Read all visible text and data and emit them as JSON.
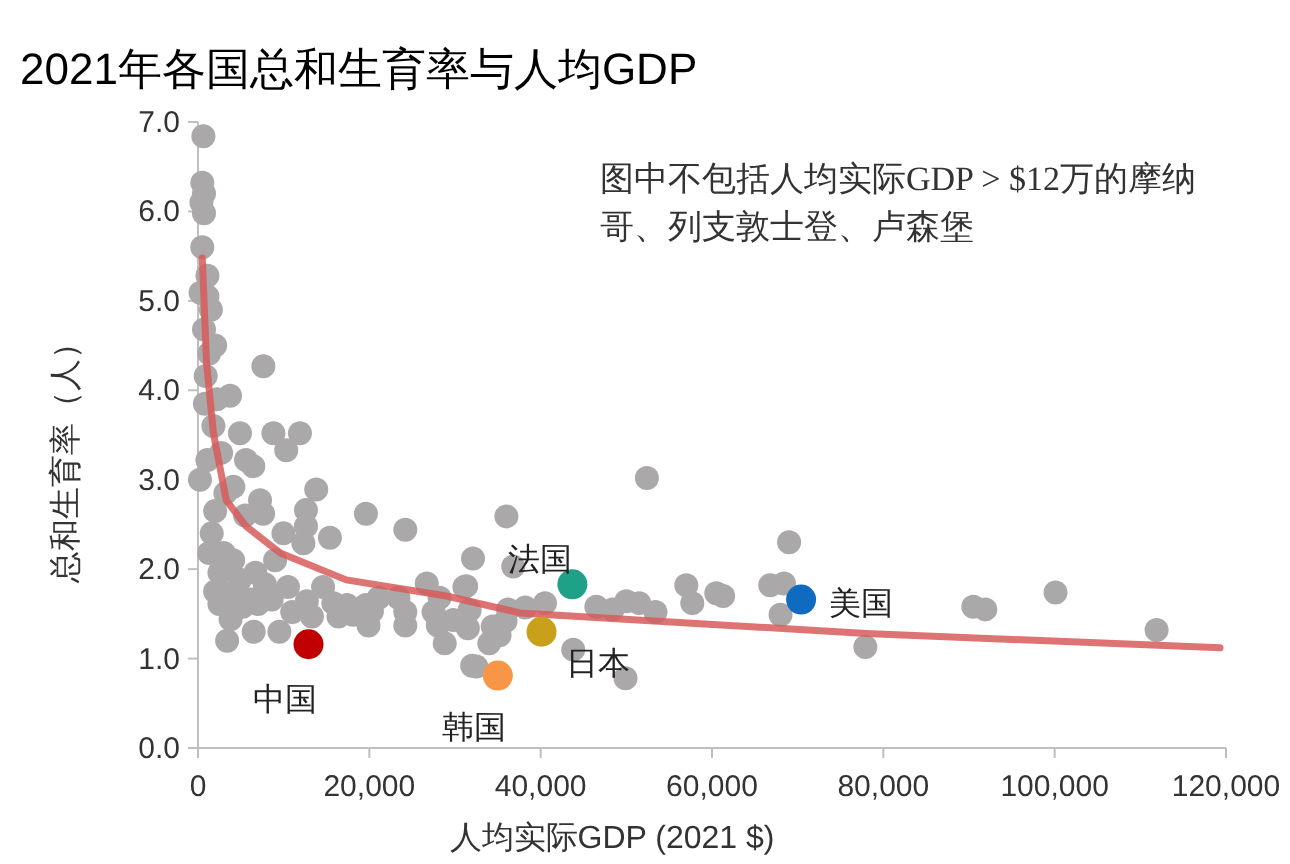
{
  "chart_data": {
    "type": "scatter",
    "title": "2021年各国总和生育率与人均GDP",
    "xlabel": "人均实际GDP (2021 $)",
    "ylabel": "总和生育率（人）",
    "annotations": [
      "图中不包括人均实际GDP > $12万的摩纳哥、列支敦士登、卢森堡"
    ],
    "xlim": [
      0,
      120000
    ],
    "ylim": [
      0,
      7
    ],
    "xticks": [
      0,
      {
        "value": 20000,
        "label": "20,000"
      },
      {
        "value": 40000,
        "label": "40,000"
      },
      {
        "value": 60000,
        "label": "60,000"
      },
      {
        "value": 80000,
        "label": "80,000"
      },
      {
        "value": 100000,
        "label": "100,000"
      },
      {
        "value": 120000,
        "label": "120,000"
      }
    ],
    "yticks": [
      {
        "value": 0,
        "label": "0.0"
      },
      {
        "value": 1,
        "label": "1.0"
      },
      {
        "value": 2,
        "label": "2.0"
      },
      {
        "value": 3,
        "label": "3.0"
      },
      {
        "value": 4,
        "label": "4.0"
      },
      {
        "value": 5,
        "label": "5.0"
      },
      {
        "value": 6,
        "label": "6.0"
      },
      {
        "value": 7,
        "label": "7.0"
      }
    ],
    "marker": "circle",
    "grid": false,
    "series": [
      {
        "color": "#aaa8a8",
        "x": [
          630,
          500,
          700,
          700,
          300,
          1100,
          1100,
          700,
          1300,
          900,
          7630,
          800,
          3740,
          8800,
          11900,
          10300,
          4900,
          5600,
          6450,
          1100,
          230,
          13800,
          7240,
          7600,
          4130,
          12600,
          12600,
          12300,
          15400,
          9970,
          19600,
          24200,
          36000,
          32100,
          36800,
          1600,
          1300,
          3000,
          4100,
          2500,
          4900,
          6700,
          7800,
          3800,
          6100,
          8600,
          2500,
          5200,
          7000,
          12700,
          3800,
          14600,
          15800,
          17400,
          19600,
          21100,
          23400,
          18100,
          20300,
          24200,
          26700,
          28200,
          27500,
          29800,
          31300,
          31700,
          32500,
          34400,
          35900,
          38200,
          52400,
          69000,
          57000,
          57700,
          60500,
          61300,
          66800,
          68400,
          68000,
          77900,
          46500,
          48400,
          50000,
          51500,
          53400,
          36200,
          40500,
          43800,
          49900,
          32000,
          34000,
          35200,
          31500,
          28000,
          28800,
          31100,
          24200,
          19900,
          16400,
          13300,
          90500,
          91900,
          100100,
          111900,
          1500,
          2000,
          2200,
          1800,
          2700,
          3200,
          2000,
          5500,
          9000,
          10500,
          11000,
          9500,
          6500,
          3400,
          2000,
          500,
          400
        ],
        "values": [
          6.84,
          6.32,
          6.2,
          5.98,
          5.09,
          5.28,
          5.05,
          4.68,
          4.41,
          4.16,
          4.27,
          3.85,
          3.94,
          3.52,
          3.52,
          3.33,
          3.52,
          3.22,
          3.15,
          3.22,
          3.0,
          2.89,
          2.77,
          2.62,
          2.92,
          2.66,
          2.48,
          2.29,
          2.35,
          2.4,
          2.62,
          2.44,
          2.59,
          2.12,
          2.03,
          2.4,
          2.18,
          2.18,
          2.1,
          1.96,
          1.88,
          1.96,
          1.83,
          1.73,
          1.66,
          1.66,
          1.61,
          1.58,
          1.61,
          1.64,
          1.44,
          1.8,
          1.62,
          1.6,
          1.6,
          1.68,
          1.68,
          1.49,
          1.53,
          1.52,
          1.84,
          1.68,
          1.52,
          1.43,
          1.81,
          1.54,
          0.91,
          1.36,
          1.42,
          1.57,
          3.02,
          2.3,
          1.82,
          1.62,
          1.73,
          1.7,
          1.82,
          1.84,
          1.49,
          1.13,
          1.58,
          1.55,
          1.64,
          1.62,
          1.52,
          1.55,
          1.62,
          1.1,
          0.78,
          0.92,
          1.17,
          1.26,
          1.34,
          1.37,
          1.17,
          1.8,
          1.37,
          1.37,
          1.47,
          1.47,
          1.58,
          1.55,
          1.74,
          1.32,
          4.9,
          4.5,
          3.9,
          3.6,
          3.3,
          2.85,
          2.65,
          2.6,
          2.1,
          1.8,
          1.52,
          1.3,
          1.3,
          1.2,
          1.75,
          5.6,
          6.1
        ]
      },
      {
        "type": "line",
        "color": "#d85a5a",
        "marker": "none",
        "x": [
          500,
          1000,
          1800,
          3300,
          5600,
          9600,
          17300,
          29000,
          37600,
          58600,
          78000,
          119300
        ],
        "values": [
          5.48,
          4.3,
          3.52,
          2.77,
          2.48,
          2.18,
          1.88,
          1.7,
          1.51,
          1.39,
          1.28,
          1.12
        ]
      },
      {
        "name": "中国",
        "color": "#c00000",
        "x": [
          12900
        ],
        "values": [
          1.16
        ]
      },
      {
        "name": "韩国",
        "color": "#f79646",
        "x": [
          35000
        ],
        "values": [
          0.81
        ]
      },
      {
        "name": "日本",
        "color": "#c9a019",
        "x": [
          40100
        ],
        "values": [
          1.3
        ]
      },
      {
        "name": "法国",
        "color": "#1fa187",
        "x": [
          43700
        ],
        "values": [
          1.83
        ]
      },
      {
        "name": "美国",
        "color": "#0e6bbf",
        "x": [
          70400
        ],
        "values": [
          1.66
        ]
      }
    ]
  }
}
